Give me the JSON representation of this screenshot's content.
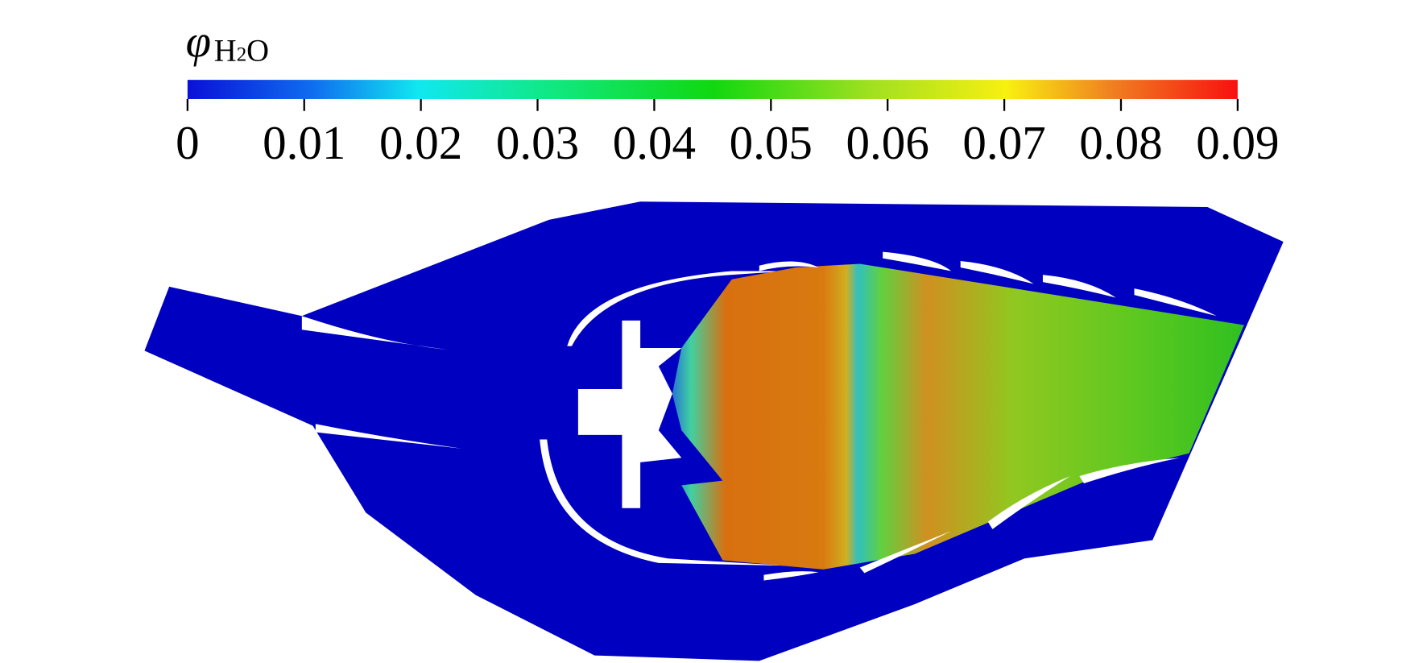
{
  "colorbar": {
    "label": {
      "symbol": "φ",
      "sub": [
        "H",
        "2",
        "O"
      ]
    },
    "lim": [
      0,
      0.09
    ],
    "ticks": [
      0,
      0.01,
      0.02,
      0.03,
      0.04,
      0.05,
      0.06,
      0.07,
      0.08,
      0.09
    ]
  }
}
